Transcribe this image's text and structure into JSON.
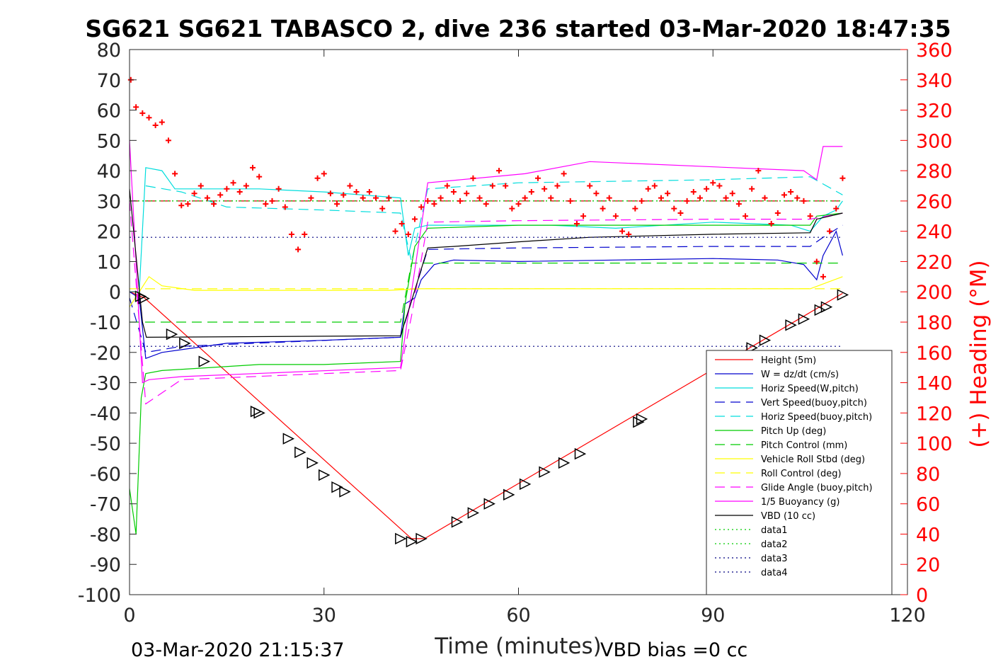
{
  "chart_data": {
    "type": "line",
    "title": "SG621 SG621 TABASCO 2, dive 236 started 03-Mar-2020 18:47:35",
    "xlabel": "Time (minutes)",
    "ylabel": "",
    "ylabel_right": "(+) Heading (°M)",
    "xlim": [
      0,
      120
    ],
    "ylim": [
      -100,
      80
    ],
    "ylim_right": [
      0,
      360
    ],
    "x_ticks": [
      "0",
      "30",
      "60",
      "90",
      "120"
    ],
    "y_ticks": [
      "80",
      "70",
      "60",
      "50",
      "40",
      "30",
      "20",
      "10",
      "0",
      "-10",
      "-20",
      "-30",
      "-40",
      "-50",
      "-60",
      "-70",
      "-80",
      "-90",
      "-100"
    ],
    "y_ticks_right": [
      "360",
      "340",
      "320",
      "300",
      "280",
      "260",
      "240",
      "220",
      "200",
      "180",
      "160",
      "140",
      "120",
      "100",
      "80",
      "60",
      "40",
      "20",
      "0"
    ],
    "footer_left": "03-Mar-2020 21:15:37",
    "footer_right": "VBD bias =0 cc",
    "grid": false,
    "legend_position": "bottom-right",
    "series": [
      {
        "name": "Height (5m)",
        "color": "#ff0000",
        "style": "solid",
        "x": [
          0,
          2.3,
          43.5,
          45.5,
          110
        ],
        "y": [
          0,
          -2,
          -81.5,
          -81.5,
          -0.5
        ]
      },
      {
        "name": "W = dz/dt (cm/s)",
        "color": "#0000cd",
        "style": "solid",
        "x": [
          0,
          1.5,
          2.5,
          5,
          15,
          30,
          41.8,
          42.5,
          44,
          45,
          47,
          50,
          60,
          75,
          90,
          100,
          104,
          106,
          107,
          109,
          110
        ],
        "y": [
          0,
          -2,
          -22,
          -20,
          -17,
          -16,
          -15,
          -4,
          -2,
          4,
          9,
          10.5,
          10,
          10.5,
          11,
          10.5,
          9,
          4,
          12,
          20,
          12
        ]
      },
      {
        "name": "Horiz Speed(W,pitch)",
        "color": "#00dddd",
        "style": "solid",
        "x": [
          0,
          1.5,
          2.5,
          5,
          7,
          20,
          30,
          41.8,
          43,
          44,
          46,
          55,
          65,
          75,
          90,
          102,
          105,
          107,
          109,
          110
        ],
        "y": [
          0,
          0,
          41,
          40,
          34,
          34,
          33,
          31,
          12,
          21,
          22,
          22,
          22,
          21,
          23,
          22,
          20,
          25,
          27,
          30
        ]
      },
      {
        "name": "Vert Speed(buoy,pitch)",
        "color": "#0000cd",
        "style": "dashed",
        "x": [
          0,
          2.5,
          8,
          41.8,
          43.5,
          46,
          60,
          90,
          105,
          107,
          110
        ],
        "y": [
          -2,
          -20,
          -18,
          -15,
          -3,
          14,
          14.5,
          15,
          15,
          18,
          22
        ]
      },
      {
        "name": "Horiz Speed(buoy,pitch)",
        "color": "#00dddd",
        "style": "dashed",
        "x": [
          2.5,
          8,
          15,
          30,
          41.8,
          43.5,
          46,
          60,
          90,
          105,
          110
        ],
        "y": [
          35,
          33,
          28,
          27,
          26,
          10,
          34,
          36,
          37,
          38,
          32
        ]
      },
      {
        "name": "Pitch Up (deg)",
        "color": "#00cc00",
        "style": "solid",
        "x": [
          0,
          1,
          1.8,
          2.5,
          5,
          20,
          30,
          41.8,
          42.5,
          44,
          46,
          60,
          90,
          105,
          106,
          110
        ],
        "y": [
          -65,
          -80,
          -35,
          -27,
          -26,
          -24,
          -24,
          -23,
          -4,
          15,
          21,
          22,
          22,
          22,
          25,
          26
        ]
      },
      {
        "name": "Pitch Control (mm)",
        "color": "#00cc00",
        "style": "dashed",
        "x": [
          0,
          41.8,
          43.5,
          110
        ],
        "y": [
          -10,
          -10,
          9.5,
          9.5
        ]
      },
      {
        "name": "Vehicle Roll Stbd (deg)",
        "color": "#ffff00",
        "style": "solid",
        "x": [
          0,
          3,
          5,
          10,
          20,
          30,
          40,
          45,
          60,
          90,
          105,
          110
        ],
        "y": [
          -5,
          5,
          2,
          0.5,
          0.5,
          0.5,
          0.5,
          1,
          1,
          1,
          1,
          5
        ]
      },
      {
        "name": "Roll Control (deg)",
        "color": "#ffff00",
        "style": "dashed",
        "x": [
          0,
          10,
          30,
          50,
          70,
          90,
          110
        ],
        "y": [
          1,
          1,
          1,
          1,
          1,
          1,
          1
        ]
      },
      {
        "name": "Glide Angle (buoy,pitch)",
        "color": "#ff00ff",
        "style": "dashed",
        "x": [
          0,
          2.5,
          8,
          30,
          41.8,
          43.5,
          46,
          60,
          90,
          105,
          110
        ],
        "y": [
          30,
          -37,
          -29,
          -27,
          -26,
          -8,
          23,
          23.5,
          24,
          24,
          26
        ]
      },
      {
        "name": "1/5 Buoyancy (g)",
        "color": "#ff00ff",
        "style": "solid",
        "x": [
          0,
          2,
          3,
          8,
          41.8,
          43.5,
          46,
          61,
          71,
          104,
          106,
          107,
          110
        ],
        "y": [
          50,
          -30,
          -29,
          -28,
          -25,
          0,
          36,
          39,
          43,
          40,
          37,
          48,
          48
        ]
      },
      {
        "name": "VBD (10 cc)",
        "color": "#000000",
        "style": "solid",
        "x": [
          0,
          2,
          2.6,
          41.8,
          43.5,
          46,
          50,
          60,
          71,
          90,
          105,
          106,
          110
        ],
        "y": [
          34,
          -10,
          -15,
          -14.5,
          -3,
          14.5,
          15,
          16.5,
          18,
          19,
          19.5,
          24,
          26
        ]
      },
      {
        "name": "data1",
        "color": "#00cc00",
        "style": "dotted",
        "x": [
          0,
          110
        ],
        "y": [
          30,
          30
        ]
      },
      {
        "name": "data2",
        "color": "#00cc00",
        "style": "dotted",
        "x": [
          0,
          110
        ],
        "y": [
          30,
          30
        ]
      },
      {
        "name": "data3",
        "color": "#000080",
        "style": "dotted",
        "x": [
          0,
          110
        ],
        "y": [
          18,
          18
        ]
      },
      {
        "name": "data4",
        "color": "#000080",
        "style": "dotted",
        "x": [
          0,
          110
        ],
        "y": [
          -18,
          -18
        ]
      }
    ],
    "reference_line": {
      "color": "#cc0000",
      "style": "dashed",
      "x": [
        0,
        110
      ],
      "y": [
        30,
        30
      ]
    },
    "heading": {
      "name": "(+) Heading (°M)",
      "color": "#ff0000",
      "axis": "right",
      "x": [
        0.2,
        1,
        2,
        3,
        4,
        5,
        6,
        7,
        8,
        9,
        10,
        11,
        12,
        13,
        14,
        15,
        16,
        17,
        18,
        19,
        20,
        21,
        22,
        23,
        24,
        25,
        26,
        27,
        28,
        29,
        30,
        31,
        32,
        33,
        34,
        35,
        36,
        37,
        38,
        39,
        40,
        41,
        42,
        43,
        44,
        45,
        46,
        47,
        48,
        49,
        50,
        51,
        52,
        53,
        54,
        55,
        56,
        57,
        58,
        59,
        60,
        61,
        62,
        63,
        64,
        65,
        66,
        67,
        68,
        69,
        70,
        71,
        72,
        73,
        74,
        75,
        76,
        77,
        78,
        79,
        80,
        81,
        82,
        83,
        84,
        85,
        86,
        87,
        88,
        89,
        90,
        91,
        92,
        93,
        94,
        95,
        96,
        97,
        98,
        99,
        100,
        101,
        102,
        103,
        104,
        105,
        106,
        107,
        108,
        109,
        110
      ],
      "y": [
        340,
        322,
        318,
        315,
        310,
        312,
        300,
        278,
        257,
        258,
        265,
        270,
        262,
        258,
        264,
        268,
        272,
        266,
        270,
        282,
        276,
        258,
        260,
        268,
        256,
        238,
        228,
        238,
        262,
        275,
        278,
        265,
        258,
        264,
        270,
        266,
        262,
        266,
        262,
        255,
        262,
        240,
        245,
        238,
        248,
        256,
        260,
        258,
        262,
        270,
        266,
        260,
        265,
        275,
        262,
        258,
        270,
        280,
        270,
        255,
        258,
        262,
        266,
        275,
        268,
        262,
        270,
        278,
        260,
        245,
        250,
        270,
        265,
        255,
        262,
        250,
        240,
        238,
        255,
        260,
        268,
        270,
        262,
        265,
        255,
        252,
        260,
        266,
        262,
        268,
        272,
        270,
        262,
        265,
        258,
        250,
        268,
        280,
        262,
        245,
        252,
        264,
        266,
        262,
        260,
        250,
        220,
        210,
        240,
        255,
        275
      ]
    },
    "markers_triangle": {
      "x": [
        1.7,
        2.2,
        6.5,
        8.5,
        11.5,
        19.5,
        20,
        24.5,
        26.3,
        28.2,
        30,
        32,
        33.2,
        41.8,
        43.5,
        45,
        50.5,
        53,
        55.5,
        58.5,
        61,
        64,
        67,
        69.5,
        78.5,
        79,
        96,
        98,
        102,
        104,
        106.5,
        107.5,
        110
      ],
      "y": [
        -1.5,
        -2.2,
        -14,
        -17,
        -23,
        -39.5,
        -40,
        -48.5,
        -53,
        -56.5,
        -60.5,
        -64.5,
        -66,
        -81.5,
        -82.5,
        -81.5,
        -76,
        -73,
        -70,
        -67,
        -63.5,
        -59.5,
        -56.5,
        -53.5,
        -43,
        -42,
        -18.5,
        -16,
        -11,
        -9,
        -6,
        -5,
        -1
      ]
    }
  }
}
